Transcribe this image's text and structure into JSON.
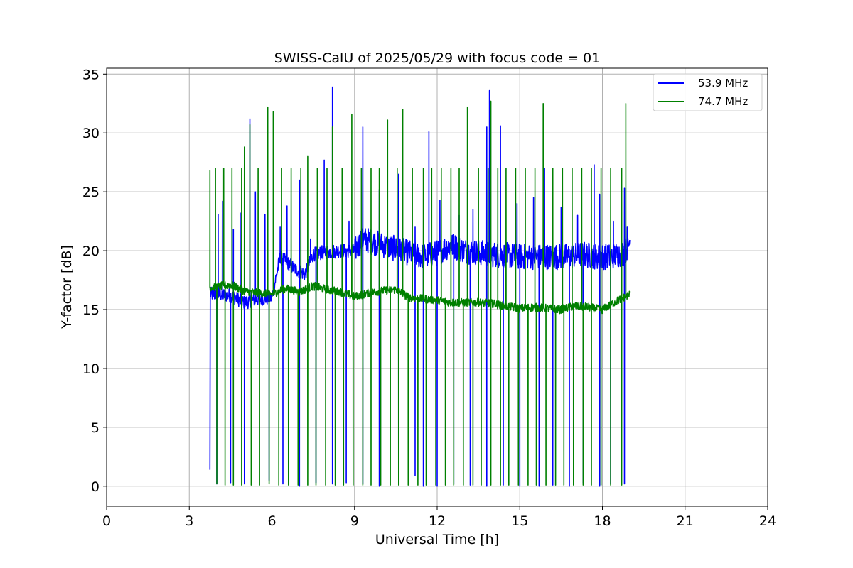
{
  "chart_data": {
    "type": "line",
    "title": "SWISS-CalU of 2025/05/29 with focus code = 01",
    "xlabel": "Universal Time [h]",
    "ylabel": "Y-factor [dB]",
    "xlim": [
      0,
      24
    ],
    "ylim": [
      -1.7,
      35.5
    ],
    "xticks": [
      0,
      3,
      6,
      9,
      12,
      15,
      18,
      21,
      24
    ],
    "yticks": [
      0,
      5,
      10,
      15,
      20,
      25,
      30,
      35
    ],
    "grid": true,
    "legend_position": "top-right",
    "series": [
      {
        "name": "53.9 MHz",
        "color": "#0000ff",
        "start_x": 3.75,
        "end_x": 19.0,
        "base_points": [
          [
            3.8,
            16.3
          ],
          [
            4.5,
            16.2
          ],
          [
            5.0,
            15.6
          ],
          [
            5.5,
            15.9
          ],
          [
            6.0,
            16.0
          ],
          [
            6.3,
            19.5
          ],
          [
            6.8,
            18.5
          ],
          [
            7.2,
            18.0
          ],
          [
            7.5,
            19.7
          ],
          [
            8.0,
            19.9
          ],
          [
            8.5,
            20.0
          ],
          [
            9.0,
            20.0
          ],
          [
            9.3,
            21.0
          ],
          [
            10.0,
            20.5
          ],
          [
            10.7,
            20.0
          ],
          [
            11.5,
            19.5
          ],
          [
            12.0,
            19.8
          ],
          [
            12.5,
            20.5
          ],
          [
            13.0,
            20.0
          ],
          [
            14.0,
            19.7
          ],
          [
            15.0,
            19.5
          ],
          [
            16.0,
            19.5
          ],
          [
            16.7,
            19.5
          ],
          [
            17.3,
            19.7
          ],
          [
            17.8,
            19.5
          ],
          [
            18.3,
            19.5
          ],
          [
            18.8,
            19.8
          ],
          [
            19.0,
            20.8
          ]
        ],
        "spikes": [
          [
            4.05,
            23.1
          ],
          [
            4.2,
            24.2
          ],
          [
            4.6,
            21.8
          ],
          [
            4.85,
            23.2
          ],
          [
            5.2,
            31.2
          ],
          [
            5.4,
            25.0
          ],
          [
            5.75,
            23.1
          ],
          [
            6.3,
            22.0
          ],
          [
            6.55,
            23.8
          ],
          [
            7.0,
            26.0
          ],
          [
            7.4,
            21.0
          ],
          [
            7.9,
            27.7
          ],
          [
            8.2,
            33.9
          ],
          [
            8.8,
            22.5
          ],
          [
            9.3,
            30.5
          ],
          [
            9.9,
            25.2
          ],
          [
            10.6,
            26.5
          ],
          [
            11.2,
            22.0
          ],
          [
            11.7,
            30.1
          ],
          [
            12.1,
            24.3
          ],
          [
            12.8,
            23.0
          ],
          [
            13.3,
            23.5
          ],
          [
            13.8,
            30.5
          ],
          [
            13.9,
            33.6
          ],
          [
            14.3,
            30.6
          ],
          [
            14.9,
            24.0
          ],
          [
            15.5,
            24.5
          ],
          [
            15.9,
            27.0
          ],
          [
            16.5,
            23.7
          ],
          [
            17.1,
            23.0
          ],
          [
            17.7,
            27.3
          ],
          [
            17.9,
            24.8
          ],
          [
            18.4,
            22.5
          ],
          [
            18.8,
            25.3
          ],
          [
            18.9,
            22.0
          ]
        ],
        "drops": [
          [
            4.0,
            0.2
          ],
          [
            4.5,
            0.3
          ],
          [
            5.0,
            0.2
          ],
          [
            5.9,
            0.5
          ],
          [
            6.4,
            0.2
          ],
          [
            7.0,
            0.0
          ],
          [
            7.6,
            0.3
          ],
          [
            8.2,
            0.2
          ],
          [
            8.7,
            0.3
          ],
          [
            9.3,
            0.2
          ],
          [
            9.9,
            0.0
          ],
          [
            10.6,
            0.8
          ],
          [
            11.2,
            0.9
          ],
          [
            11.5,
            0.0
          ],
          [
            12.0,
            0.0
          ],
          [
            12.6,
            0.2
          ],
          [
            13.2,
            0.1
          ],
          [
            13.8,
            0.0
          ],
          [
            14.4,
            0.1
          ],
          [
            15.0,
            0.0
          ],
          [
            15.7,
            0.0
          ],
          [
            16.2,
            0.1
          ],
          [
            16.8,
            0.0
          ],
          [
            17.3,
            0.3
          ],
          [
            17.9,
            0.0
          ],
          [
            18.3,
            0.2
          ],
          [
            18.8,
            0.2
          ]
        ],
        "start_value": 1.4
      },
      {
        "name": "74.7 MHz",
        "color": "#008000",
        "start_x": 3.75,
        "end_x": 19.0,
        "base_points": [
          [
            3.8,
            16.9
          ],
          [
            4.5,
            17.1
          ],
          [
            5.0,
            16.6
          ],
          [
            5.5,
            16.4
          ],
          [
            6.0,
            16.3
          ],
          [
            6.5,
            16.8
          ],
          [
            7.0,
            16.5
          ],
          [
            7.5,
            17.0
          ],
          [
            8.0,
            16.7
          ],
          [
            8.5,
            16.5
          ],
          [
            9.0,
            16.1
          ],
          [
            9.5,
            16.4
          ],
          [
            10.0,
            16.6
          ],
          [
            10.5,
            16.7
          ],
          [
            11.0,
            16.0
          ],
          [
            11.5,
            15.9
          ],
          [
            12.0,
            15.8
          ],
          [
            12.5,
            15.6
          ],
          [
            13.0,
            15.6
          ],
          [
            13.5,
            15.6
          ],
          [
            14.0,
            15.5
          ],
          [
            14.5,
            15.3
          ],
          [
            15.0,
            15.1
          ],
          [
            15.5,
            15.2
          ],
          [
            16.0,
            15.1
          ],
          [
            16.5,
            15.0
          ],
          [
            17.0,
            15.3
          ],
          [
            17.5,
            15.2
          ],
          [
            18.0,
            15.0
          ],
          [
            18.5,
            15.7
          ],
          [
            19.0,
            16.3
          ]
        ],
        "spikes": [
          [
            3.75,
            26.8
          ],
          [
            3.95,
            27.0
          ],
          [
            4.25,
            27.0
          ],
          [
            4.55,
            27.0
          ],
          [
            4.9,
            27.0
          ],
          [
            5.0,
            28.8
          ],
          [
            5.2,
            30.7
          ],
          [
            5.5,
            27.0
          ],
          [
            5.85,
            32.2
          ],
          [
            6.05,
            31.8
          ],
          [
            6.35,
            27.0
          ],
          [
            6.7,
            27.0
          ],
          [
            7.05,
            27.0
          ],
          [
            7.3,
            28.0
          ],
          [
            7.65,
            27.0
          ],
          [
            8.0,
            27.0
          ],
          [
            8.2,
            30.5
          ],
          [
            8.55,
            27.0
          ],
          [
            8.9,
            31.6
          ],
          [
            9.25,
            27.0
          ],
          [
            9.6,
            27.0
          ],
          [
            9.9,
            27.0
          ],
          [
            10.2,
            31.1
          ],
          [
            10.55,
            27.0
          ],
          [
            10.75,
            32.0
          ],
          [
            11.1,
            27.0
          ],
          [
            11.5,
            27.0
          ],
          [
            11.8,
            27.0
          ],
          [
            12.15,
            27.0
          ],
          [
            12.5,
            27.0
          ],
          [
            12.8,
            27.0
          ],
          [
            13.1,
            32.2
          ],
          [
            13.5,
            27.0
          ],
          [
            13.85,
            27.0
          ],
          [
            13.95,
            32.7
          ],
          [
            14.2,
            27.0
          ],
          [
            14.5,
            27.0
          ],
          [
            14.85,
            27.0
          ],
          [
            15.2,
            27.0
          ],
          [
            15.55,
            27.0
          ],
          [
            15.85,
            32.5
          ],
          [
            16.2,
            27.0
          ],
          [
            16.55,
            27.0
          ],
          [
            16.9,
            27.0
          ],
          [
            17.25,
            27.0
          ],
          [
            17.6,
            27.0
          ],
          [
            17.95,
            27.0
          ],
          [
            18.3,
            27.0
          ],
          [
            18.7,
            27.0
          ],
          [
            18.85,
            32.5
          ]
        ],
        "drops": [
          [
            4.0,
            0.2
          ],
          [
            4.3,
            0.1
          ],
          [
            4.6,
            0.1
          ],
          [
            4.9,
            0.1
          ],
          [
            5.25,
            0.1
          ],
          [
            5.55,
            0.1
          ],
          [
            5.9,
            0.2
          ],
          [
            6.25,
            0.1
          ],
          [
            6.6,
            0.1
          ],
          [
            6.95,
            0.1
          ],
          [
            7.3,
            0.1
          ],
          [
            7.6,
            0.1
          ],
          [
            7.95,
            0.1
          ],
          [
            8.3,
            0.1
          ],
          [
            8.6,
            0.1
          ],
          [
            8.95,
            0.1
          ],
          [
            9.3,
            0.1
          ],
          [
            9.6,
            0.1
          ],
          [
            9.95,
            0.1
          ],
          [
            10.3,
            0.1
          ],
          [
            10.6,
            0.1
          ],
          [
            10.95,
            0.1
          ],
          [
            11.3,
            0.1
          ],
          [
            11.6,
            0.1
          ],
          [
            11.95,
            0.1
          ],
          [
            12.3,
            0.1
          ],
          [
            12.6,
            0.1
          ],
          [
            12.95,
            0.1
          ],
          [
            13.3,
            0.1
          ],
          [
            13.6,
            0.1
          ],
          [
            13.95,
            0.1
          ],
          [
            14.3,
            0.1
          ],
          [
            14.6,
            0.1
          ],
          [
            14.95,
            0.1
          ],
          [
            15.3,
            0.1
          ],
          [
            15.6,
            0.1
          ],
          [
            15.95,
            0.1
          ],
          [
            16.3,
            0.1
          ],
          [
            16.6,
            0.1
          ],
          [
            16.95,
            0.1
          ],
          [
            17.3,
            0.1
          ],
          [
            17.6,
            0.1
          ],
          [
            17.95,
            0.1
          ],
          [
            18.3,
            0.1
          ],
          [
            18.7,
            0.1
          ]
        ],
        "start_value": 26.8
      }
    ]
  }
}
